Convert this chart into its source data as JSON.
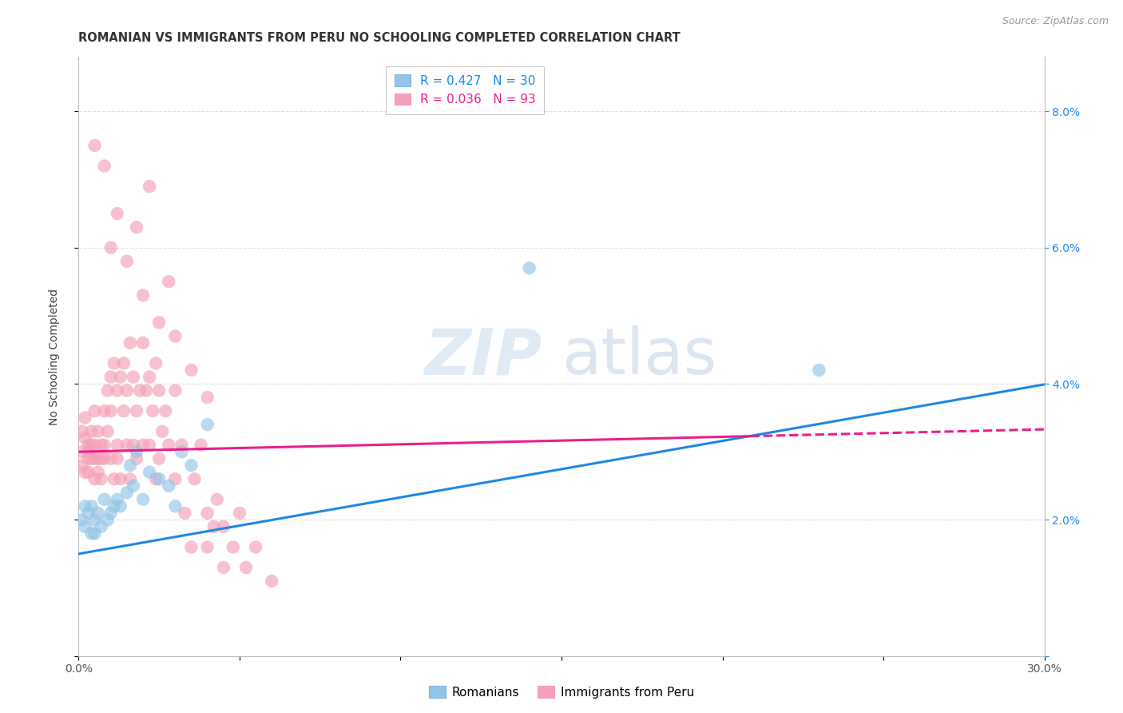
{
  "title": "ROMANIAN VS IMMIGRANTS FROM PERU NO SCHOOLING COMPLETED CORRELATION CHART",
  "source": "Source: ZipAtlas.com",
  "ylabel": "No Schooling Completed",
  "xlim": [
    0.0,
    0.3
  ],
  "ylim": [
    0.0,
    0.088
  ],
  "xtick_positions": [
    0.0,
    0.05,
    0.1,
    0.15,
    0.2,
    0.25,
    0.3
  ],
  "xtick_labels": [
    "0.0%",
    "",
    "",
    "",
    "",
    "",
    "30.0%"
  ],
  "ytick_positions": [
    0.0,
    0.02,
    0.04,
    0.06,
    0.08
  ],
  "ytick_labels": [
    "",
    "2.0%",
    "4.0%",
    "6.0%",
    "8.0%"
  ],
  "blue_scatter_color": "#92C5E8",
  "pink_scatter_color": "#F4A0B8",
  "blue_line_color": "#1E88E5",
  "pink_line_color": "#E91E8C",
  "grid_color": "#DDDDDD",
  "legend_blue_r": "R = 0.427",
  "legend_blue_n": "N = 30",
  "legend_pink_r": "R = 0.036",
  "legend_pink_n": "N = 93",
  "blue_intercept": 0.015,
  "blue_slope": 0.083,
  "pink_intercept": 0.03,
  "pink_slope": 0.011,
  "romanians_x": [
    0.001,
    0.002,
    0.002,
    0.003,
    0.004,
    0.004,
    0.005,
    0.005,
    0.006,
    0.007,
    0.008,
    0.009,
    0.01,
    0.011,
    0.012,
    0.013,
    0.015,
    0.016,
    0.017,
    0.018,
    0.02,
    0.022,
    0.025,
    0.028,
    0.03,
    0.032,
    0.035,
    0.04,
    0.14,
    0.23
  ],
  "romanians_y": [
    0.02,
    0.019,
    0.022,
    0.021,
    0.018,
    0.022,
    0.02,
    0.018,
    0.021,
    0.019,
    0.023,
    0.02,
    0.021,
    0.022,
    0.023,
    0.022,
    0.024,
    0.028,
    0.025,
    0.03,
    0.023,
    0.027,
    0.026,
    0.025,
    0.022,
    0.03,
    0.028,
    0.034,
    0.057,
    0.042
  ],
  "peru_x": [
    0.001,
    0.001,
    0.001,
    0.002,
    0.002,
    0.002,
    0.003,
    0.003,
    0.003,
    0.003,
    0.004,
    0.004,
    0.004,
    0.005,
    0.005,
    0.005,
    0.005,
    0.006,
    0.006,
    0.006,
    0.007,
    0.007,
    0.007,
    0.008,
    0.008,
    0.008,
    0.009,
    0.009,
    0.01,
    0.01,
    0.01,
    0.011,
    0.011,
    0.012,
    0.012,
    0.012,
    0.013,
    0.013,
    0.014,
    0.014,
    0.015,
    0.015,
    0.016,
    0.016,
    0.017,
    0.017,
    0.018,
    0.018,
    0.019,
    0.02,
    0.02,
    0.021,
    0.022,
    0.022,
    0.023,
    0.024,
    0.024,
    0.025,
    0.025,
    0.026,
    0.027,
    0.028,
    0.03,
    0.03,
    0.032,
    0.033,
    0.035,
    0.036,
    0.038,
    0.04,
    0.04,
    0.042,
    0.043,
    0.045,
    0.045,
    0.048,
    0.05,
    0.052,
    0.055,
    0.06,
    0.005,
    0.008,
    0.01,
    0.012,
    0.015,
    0.018,
    0.02,
    0.022,
    0.025,
    0.028,
    0.03,
    0.035,
    0.04
  ],
  "peru_y": [
    0.03,
    0.028,
    0.033,
    0.032,
    0.027,
    0.035,
    0.031,
    0.029,
    0.027,
    0.03,
    0.033,
    0.029,
    0.031,
    0.036,
    0.029,
    0.031,
    0.026,
    0.033,
    0.029,
    0.027,
    0.031,
    0.029,
    0.026,
    0.036,
    0.031,
    0.029,
    0.039,
    0.033,
    0.041,
    0.029,
    0.036,
    0.043,
    0.026,
    0.039,
    0.031,
    0.029,
    0.041,
    0.026,
    0.036,
    0.043,
    0.039,
    0.031,
    0.046,
    0.026,
    0.041,
    0.031,
    0.036,
    0.029,
    0.039,
    0.031,
    0.046,
    0.039,
    0.041,
    0.031,
    0.036,
    0.026,
    0.043,
    0.039,
    0.029,
    0.033,
    0.036,
    0.031,
    0.026,
    0.039,
    0.031,
    0.021,
    0.016,
    0.026,
    0.031,
    0.021,
    0.016,
    0.019,
    0.023,
    0.013,
    0.019,
    0.016,
    0.021,
    0.013,
    0.016,
    0.011,
    0.075,
    0.072,
    0.06,
    0.065,
    0.058,
    0.063,
    0.053,
    0.069,
    0.049,
    0.055,
    0.047,
    0.042,
    0.038
  ]
}
